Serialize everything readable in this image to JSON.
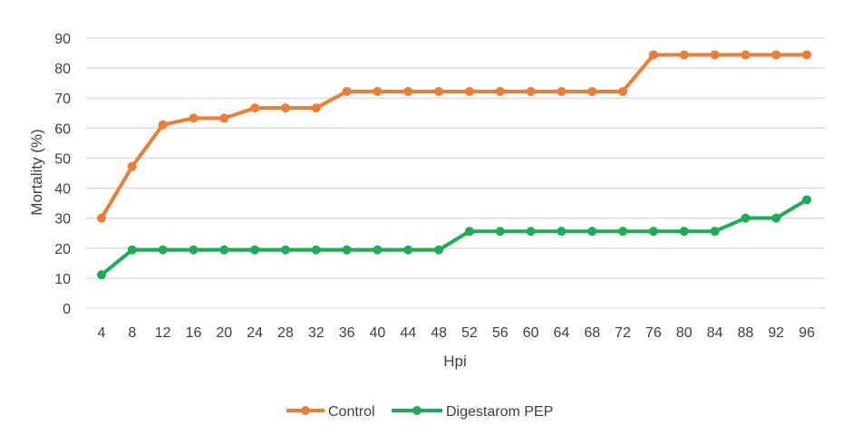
{
  "chart_data": {
    "type": "line",
    "title": "",
    "xlabel": "Hpi",
    "ylabel": "Mortality (%)",
    "ylim": [
      0,
      90
    ],
    "yticks": [
      0,
      10,
      20,
      30,
      40,
      50,
      60,
      70,
      80,
      90
    ],
    "grid": true,
    "legend_position": "bottom",
    "x": [
      4,
      8,
      12,
      16,
      20,
      24,
      28,
      32,
      36,
      40,
      44,
      48,
      52,
      56,
      60,
      64,
      68,
      72,
      76,
      80,
      84,
      88,
      92,
      96
    ],
    "series": [
      {
        "name": "Control",
        "color": "#ED7D31",
        "values": [
          30.0,
          47.2,
          61.1,
          63.3,
          63.3,
          66.7,
          66.7,
          66.7,
          72.2,
          72.2,
          72.2,
          72.2,
          72.2,
          72.2,
          72.2,
          72.2,
          72.2,
          72.2,
          84.4,
          84.4,
          84.4,
          84.4,
          84.4,
          84.4
        ]
      },
      {
        "name": "Digestarom PEP",
        "color": "#1AAF54",
        "values": [
          11.1,
          19.4,
          19.4,
          19.4,
          19.4,
          19.4,
          19.4,
          19.4,
          19.4,
          19.4,
          19.4,
          19.4,
          25.6,
          25.6,
          25.6,
          25.6,
          25.6,
          25.6,
          25.6,
          25.6,
          25.6,
          30.0,
          30.0,
          36.1
        ]
      }
    ]
  }
}
